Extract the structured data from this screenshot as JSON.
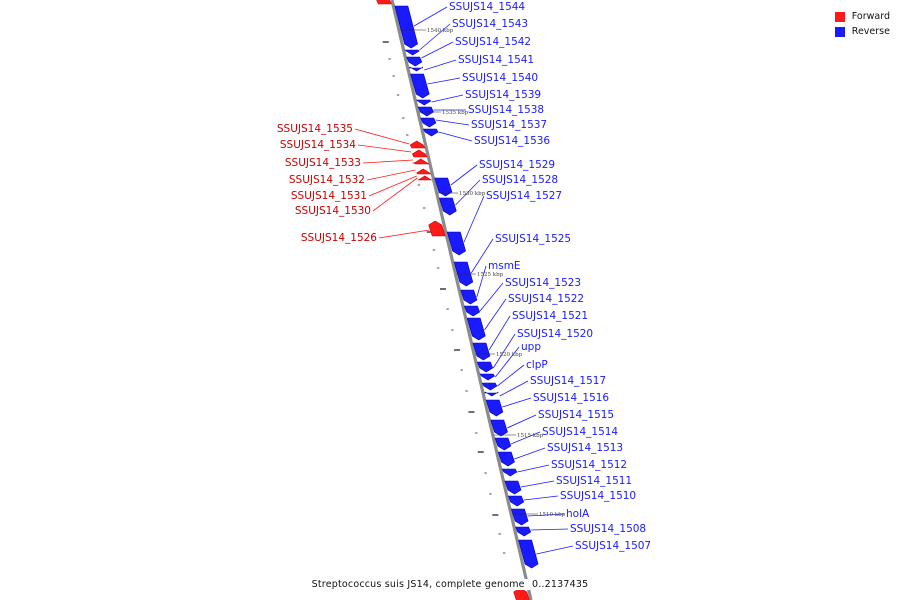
{
  "colors": {
    "forward": "#ff1a1a",
    "forward_dark": "#c80000",
    "reverse": "#1a1aff",
    "reverse_dark": "#0000b4",
    "backbone": "#8c8c8c",
    "tick": "#222222"
  },
  "legend": [
    {
      "label": "Forward",
      "color": "#ff1a1a"
    },
    {
      "label": "Reverse",
      "color": "#1a1aff"
    }
  ],
  "caption": {
    "title": "Streptococcus suis JS14, complete genome",
    "range": "0..2137435"
  },
  "ticks": [
    "1540 kbp",
    "1535 kbp",
    "1530 kbp",
    "1525 kbp",
    "1520 kbp",
    "1515 kbp",
    "1510 kbp"
  ],
  "forward_genes": [
    "SSUJS14_1535",
    "SSUJS14_1534",
    "SSUJS14_1533",
    "SSUJS14_1532",
    "SSUJS14_1531",
    "SSUJS14_1530",
    "SSUJS14_1526"
  ],
  "reverse_genes": [
    "SSUJS14_1544",
    "SSUJS14_1543",
    "SSUJS14_1542",
    "SSUJS14_1541",
    "SSUJS14_1540",
    "SSUJS14_1539",
    "SSUJS14_1538",
    "SSUJS14_1537",
    "SSUJS14_1536",
    "SSUJS14_1529",
    "SSUJS14_1528",
    "SSUJS14_1527",
    "SSUJS14_1525",
    "msmE",
    "SSUJS14_1523",
    "SSUJS14_1522",
    "SSUJS14_1521",
    "SSUJS14_1520",
    "upp",
    "clpP",
    "SSUJS14_1517",
    "SSUJS14_1516",
    "SSUJS14_1515",
    "SSUJS14_1514",
    "SSUJS14_1513",
    "SSUJS14_1512",
    "SSUJS14_1511",
    "SSUJS14_1510",
    "holA",
    "SSUJS14_1508",
    "SSUJS14_1507"
  ]
}
